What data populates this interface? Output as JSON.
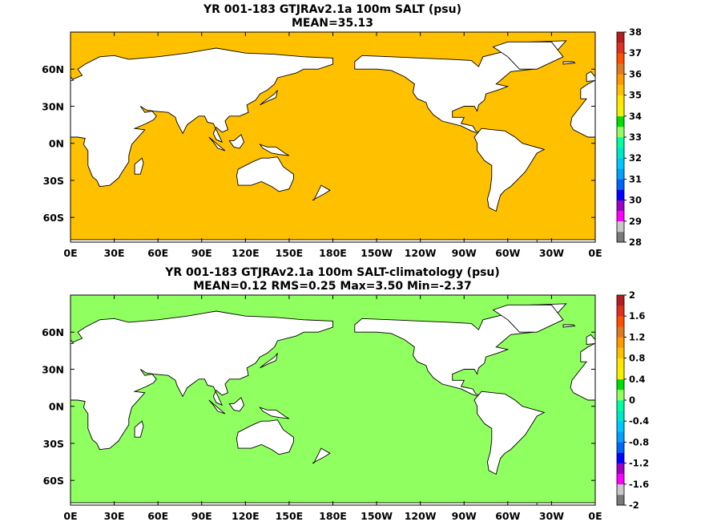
{
  "chart_data": [
    {
      "type": "heatmap",
      "title": "YR 001-183 GTJRAv2.1a 100m SALT (psu)",
      "subtitle": "MEAN=35.13",
      "xlabel": "",
      "ylabel": "",
      "x_ticks": [
        "0E",
        "30E",
        "60E",
        "90E",
        "120E",
        "150E",
        "180E",
        "150W",
        "120W",
        "90W",
        "60W",
        "30W",
        "0E"
      ],
      "y_ticks": [
        "60N",
        "30N",
        "0N",
        "30S",
        "60S"
      ],
      "y_tick_values": [
        60,
        30,
        0,
        -30,
        -60
      ],
      "xlim": [
        0,
        360
      ],
      "ylim": [
        -80,
        90
      ],
      "colorbar": {
        "labels": [
          "38",
          "37",
          "36",
          "35",
          "34",
          "33",
          "32",
          "31",
          "30",
          "29",
          "28"
        ],
        "levels": [
          28,
          28.5,
          29,
          29.5,
          30,
          30.5,
          31,
          31.5,
          32,
          32.5,
          33,
          33.5,
          34,
          34.5,
          35,
          35.5,
          36,
          36.5,
          37,
          37.5,
          38
        ],
        "colors": [
          "#7a7a7a",
          "#c8c8c8",
          "#ff00ff",
          "#a000c8",
          "#0000ff",
          "#0064ff",
          "#00a0ff",
          "#00c8ff",
          "#00e6c8",
          "#00ffa0",
          "#90ff60",
          "#00e000",
          "#f2f200",
          "#ffe600",
          "#ffc000",
          "#ff9a00",
          "#e07a20",
          "#ff5000",
          "#e03020",
          "#b41e1e"
        ]
      },
      "background_value": 35.0
    },
    {
      "type": "heatmap",
      "title": "YR 001-183 GTJRAv2.1a 100m SALT-climatology (psu)",
      "subtitle": "MEAN=0.12   RMS=0.25   Max=3.50   Min=-2.37",
      "xlabel": "",
      "ylabel": "",
      "x_ticks": [
        "0E",
        "30E",
        "60E",
        "90E",
        "120E",
        "150E",
        "180E",
        "150W",
        "120W",
        "90W",
        "60W",
        "30W",
        "0E"
      ],
      "y_ticks": [
        "60N",
        "30N",
        "0N",
        "30S",
        "60S"
      ],
      "y_tick_values": [
        60,
        30,
        0,
        -30,
        -60
      ],
      "xlim": [
        0,
        360
      ],
      "ylim": [
        -80,
        90
      ],
      "colorbar": {
        "labels": [
          "2",
          "1.6",
          "1.2",
          "0.8",
          "0.4",
          "0",
          "-0.4",
          "-0.8",
          "-1.2",
          "-1.6",
          "-2"
        ],
        "levels": [
          -2,
          -1.8,
          -1.6,
          -1.4,
          -1.2,
          -1,
          -0.8,
          -0.6,
          -0.4,
          -0.2,
          0,
          0.2,
          0.4,
          0.6,
          0.8,
          1,
          1.2,
          1.4,
          1.6,
          1.8,
          2
        ],
        "colors": [
          "#7a7a7a",
          "#c8c8c8",
          "#ff00ff",
          "#a000c8",
          "#0000ff",
          "#0064ff",
          "#00a0ff",
          "#00c8ff",
          "#00e6c8",
          "#00ffa0",
          "#90ff60",
          "#00e000",
          "#f2f200",
          "#ffe600",
          "#ffc000",
          "#ff9a00",
          "#e07a20",
          "#ff5000",
          "#e03020",
          "#b41e1e"
        ]
      },
      "background_value": 0.1
    }
  ]
}
